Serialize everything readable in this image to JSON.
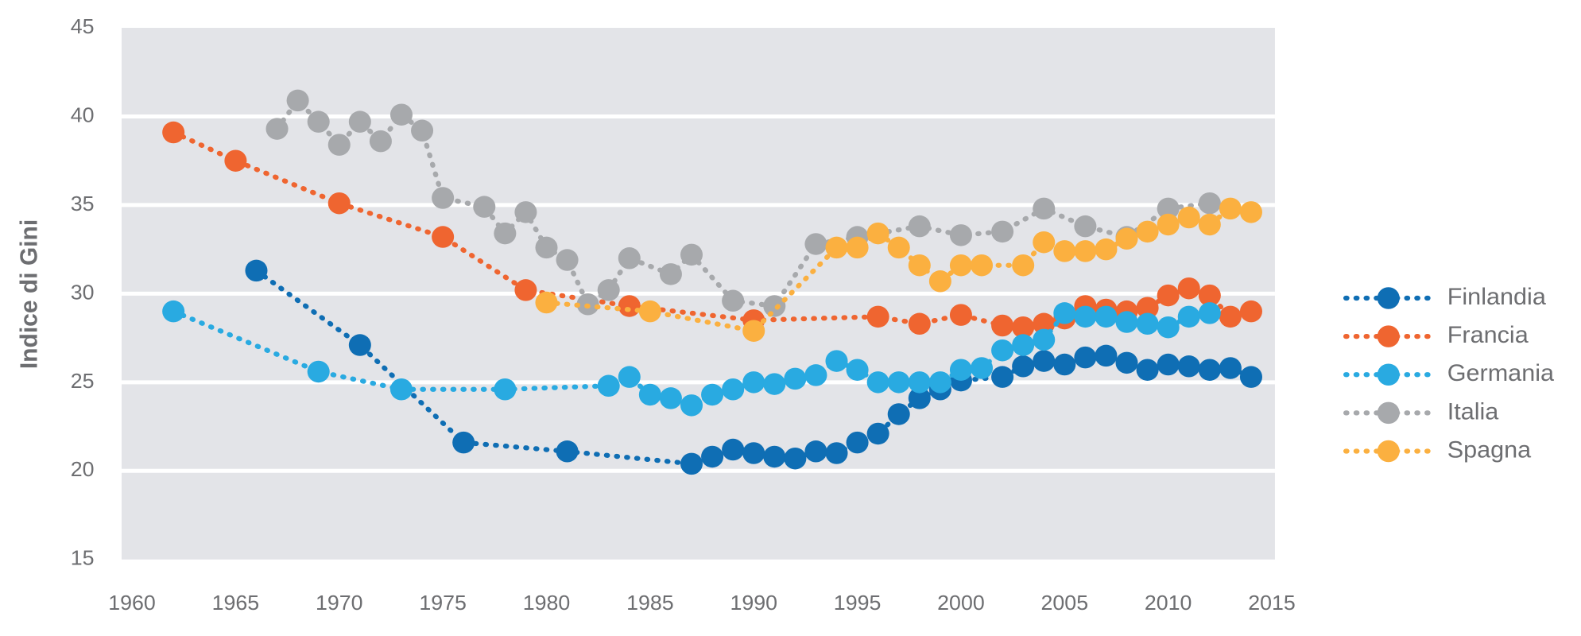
{
  "chart_data": {
    "type": "line",
    "y_label": "Indice di Gini",
    "xlim": [
      1959.5,
      2015.15
    ],
    "ylim": [
      15,
      45
    ],
    "xticks": [
      1960,
      1965,
      1970,
      1975,
      1980,
      1985,
      1990,
      1995,
      2000,
      2005,
      2010,
      2015
    ],
    "yticks": [
      15,
      20,
      25,
      30,
      35,
      40,
      45
    ],
    "grid": true,
    "legend": "right",
    "series": [
      {
        "name": "Finlandia",
        "color": "#0f6eb4",
        "x": [
          1966,
          1971,
          1976,
          1981,
          1987,
          1988,
          1989,
          1990,
          1991,
          1992,
          1993,
          1994,
          1995,
          1996,
          1997,
          1998,
          1999,
          2000,
          2002,
          2003,
          2004,
          2005,
          2006,
          2007,
          2008,
          2009,
          2010,
          2011,
          2012,
          2013,
          2014
        ],
        "values": [
          31.3,
          27.1,
          21.6,
          21.1,
          20.4,
          20.8,
          21.2,
          21.0,
          20.8,
          20.7,
          21.1,
          21.0,
          21.6,
          22.1,
          23.2,
          24.1,
          24.6,
          25.1,
          25.3,
          25.9,
          26.2,
          26.0,
          26.4,
          26.5,
          26.1,
          25.7,
          26.0,
          25.9,
          25.7,
          25.8,
          25.3
        ]
      },
      {
        "name": "Francia",
        "color": "#ef6530",
        "x": [
          1962,
          1965,
          1970,
          1975,
          1979,
          1984,
          1990,
          1996,
          1998,
          2000,
          2002,
          2003,
          2004,
          2005,
          2006,
          2007,
          2008,
          2009,
          2010,
          2011,
          2012,
          2013,
          2014
        ],
        "values": [
          39.1,
          37.5,
          35.1,
          33.2,
          30.2,
          29.3,
          28.5,
          28.7,
          28.3,
          28.8,
          28.2,
          28.1,
          28.3,
          28.6,
          29.3,
          29.1,
          29.0,
          29.2,
          29.9,
          30.3,
          29.9,
          28.7,
          29.0
        ]
      },
      {
        "name": "Germania",
        "color": "#29aae1",
        "x": [
          1962,
          1969,
          1973,
          1978,
          1983,
          1984,
          1985,
          1986,
          1987,
          1988,
          1989,
          1990,
          1991,
          1992,
          1993,
          1994,
          1995,
          1996,
          1997,
          1998,
          1999,
          2000,
          2001,
          2002,
          2003,
          2004,
          2005,
          2006,
          2007,
          2008,
          2009,
          2010,
          2011,
          2012
        ],
        "values": [
          29.0,
          25.6,
          24.6,
          24.6,
          24.8,
          25.3,
          24.3,
          24.1,
          23.7,
          24.3,
          24.6,
          25.0,
          24.9,
          25.2,
          25.4,
          26.2,
          25.7,
          25.0,
          25.0,
          25.0,
          25.0,
          25.7,
          25.8,
          26.8,
          27.1,
          27.4,
          28.9,
          28.7,
          28.7,
          28.4,
          28.3,
          28.1,
          28.7,
          28.9
        ]
      },
      {
        "name": "Italia",
        "color": "#a7a9ac",
        "x": [
          1967,
          1968,
          1969,
          1970,
          1971,
          1972,
          1973,
          1974,
          1975,
          1977,
          1978,
          1979,
          1980,
          1981,
          1982,
          1983,
          1984,
          1986,
          1987,
          1989,
          1991,
          1993,
          1995,
          1998,
          2000,
          2002,
          2004,
          2006,
          2008,
          2010,
          2012
        ],
        "values": [
          39.3,
          40.9,
          39.7,
          38.4,
          39.7,
          38.6,
          40.1,
          39.2,
          35.4,
          34.9,
          33.4,
          34.6,
          32.6,
          31.9,
          29.4,
          30.2,
          32.0,
          31.1,
          32.2,
          29.6,
          29.3,
          32.8,
          33.2,
          33.8,
          33.3,
          33.5,
          34.8,
          33.8,
          33.2,
          34.8,
          35.1
        ]
      },
      {
        "name": "Spagna",
        "color": "#fbb040",
        "x": [
          1980,
          1985,
          1990,
          1994,
          1995,
          1996,
          1997,
          1998,
          1999,
          2000,
          2001,
          2003,
          2004,
          2005,
          2006,
          2007,
          2008,
          2009,
          2010,
          2011,
          2012,
          2013,
          2014
        ],
        "values": [
          29.5,
          29.0,
          27.9,
          32.6,
          32.6,
          33.4,
          32.6,
          31.6,
          30.7,
          31.6,
          31.6,
          31.6,
          32.9,
          32.4,
          32.4,
          32.5,
          33.1,
          33.5,
          33.9,
          34.3,
          33.9,
          34.8,
          34.6
        ]
      }
    ]
  }
}
